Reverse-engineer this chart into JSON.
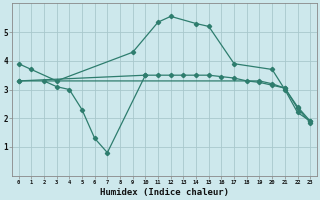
{
  "xlabel": "Humidex (Indice chaleur)",
  "bg_color": "#cde8ec",
  "line_color": "#2e7d6e",
  "grid_color": "#a8c8cc",
  "ylim": [
    0,
    6
  ],
  "xlim": [
    -0.5,
    23.5
  ],
  "line1_x": [
    0,
    1,
    3,
    9,
    11,
    12,
    14,
    15,
    17,
    20,
    21,
    22,
    23
  ],
  "line1_y": [
    3.9,
    3.7,
    3.3,
    4.3,
    5.35,
    5.55,
    5.3,
    5.2,
    3.9,
    3.7,
    3.0,
    2.2,
    1.9
  ],
  "line2_x": [
    2,
    3,
    4,
    5,
    6,
    7,
    10
  ],
  "line2_y": [
    3.3,
    3.1,
    3.0,
    2.3,
    1.3,
    0.8,
    3.5
  ],
  "line3_x": [
    0,
    10,
    11,
    12,
    13,
    14,
    15,
    16,
    17,
    18,
    19,
    20,
    21,
    22,
    23
  ],
  "line3_y": [
    3.3,
    3.5,
    3.5,
    3.5,
    3.5,
    3.5,
    3.5,
    3.45,
    3.4,
    3.3,
    3.25,
    3.15,
    3.05,
    2.4,
    1.9
  ],
  "line4_x": [
    0,
    19,
    20,
    21,
    22,
    23
  ],
  "line4_y": [
    3.3,
    3.3,
    3.2,
    3.05,
    2.35,
    1.85
  ],
  "yticks": [
    1,
    2,
    3,
    4,
    5
  ],
  "xticks": [
    0,
    1,
    2,
    3,
    4,
    5,
    6,
    7,
    8,
    9,
    10,
    11,
    12,
    13,
    14,
    15,
    16,
    17,
    18,
    19,
    20,
    21,
    22,
    23
  ]
}
